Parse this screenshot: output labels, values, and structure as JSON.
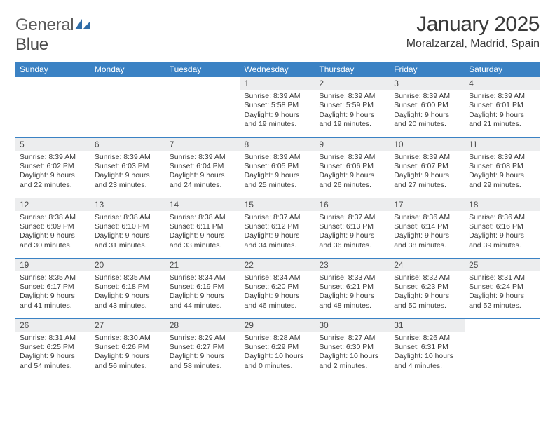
{
  "brand": {
    "part1": "General",
    "part2": "Blue"
  },
  "title": "January 2025",
  "location": "Moralzarzal, Madrid, Spain",
  "colors": {
    "header_bg": "#3b82c4",
    "header_fg": "#ffffff",
    "daynum_bg": "#ecedee",
    "row_border": "#3b82c4",
    "text": "#3a3a3a",
    "logo_blue": "#2f6da8"
  },
  "day_names": [
    "Sunday",
    "Monday",
    "Tuesday",
    "Wednesday",
    "Thursday",
    "Friday",
    "Saturday"
  ],
  "weeks": [
    [
      {
        "n": "",
        "lines": []
      },
      {
        "n": "",
        "lines": []
      },
      {
        "n": "",
        "lines": []
      },
      {
        "n": "1",
        "lines": [
          "Sunrise: 8:39 AM",
          "Sunset: 5:58 PM",
          "Daylight: 9 hours",
          "and 19 minutes."
        ]
      },
      {
        "n": "2",
        "lines": [
          "Sunrise: 8:39 AM",
          "Sunset: 5:59 PM",
          "Daylight: 9 hours",
          "and 19 minutes."
        ]
      },
      {
        "n": "3",
        "lines": [
          "Sunrise: 8:39 AM",
          "Sunset: 6:00 PM",
          "Daylight: 9 hours",
          "and 20 minutes."
        ]
      },
      {
        "n": "4",
        "lines": [
          "Sunrise: 8:39 AM",
          "Sunset: 6:01 PM",
          "Daylight: 9 hours",
          "and 21 minutes."
        ]
      }
    ],
    [
      {
        "n": "5",
        "lines": [
          "Sunrise: 8:39 AM",
          "Sunset: 6:02 PM",
          "Daylight: 9 hours",
          "and 22 minutes."
        ]
      },
      {
        "n": "6",
        "lines": [
          "Sunrise: 8:39 AM",
          "Sunset: 6:03 PM",
          "Daylight: 9 hours",
          "and 23 minutes."
        ]
      },
      {
        "n": "7",
        "lines": [
          "Sunrise: 8:39 AM",
          "Sunset: 6:04 PM",
          "Daylight: 9 hours",
          "and 24 minutes."
        ]
      },
      {
        "n": "8",
        "lines": [
          "Sunrise: 8:39 AM",
          "Sunset: 6:05 PM",
          "Daylight: 9 hours",
          "and 25 minutes."
        ]
      },
      {
        "n": "9",
        "lines": [
          "Sunrise: 8:39 AM",
          "Sunset: 6:06 PM",
          "Daylight: 9 hours",
          "and 26 minutes."
        ]
      },
      {
        "n": "10",
        "lines": [
          "Sunrise: 8:39 AM",
          "Sunset: 6:07 PM",
          "Daylight: 9 hours",
          "and 27 minutes."
        ]
      },
      {
        "n": "11",
        "lines": [
          "Sunrise: 8:39 AM",
          "Sunset: 6:08 PM",
          "Daylight: 9 hours",
          "and 29 minutes."
        ]
      }
    ],
    [
      {
        "n": "12",
        "lines": [
          "Sunrise: 8:38 AM",
          "Sunset: 6:09 PM",
          "Daylight: 9 hours",
          "and 30 minutes."
        ]
      },
      {
        "n": "13",
        "lines": [
          "Sunrise: 8:38 AM",
          "Sunset: 6:10 PM",
          "Daylight: 9 hours",
          "and 31 minutes."
        ]
      },
      {
        "n": "14",
        "lines": [
          "Sunrise: 8:38 AM",
          "Sunset: 6:11 PM",
          "Daylight: 9 hours",
          "and 33 minutes."
        ]
      },
      {
        "n": "15",
        "lines": [
          "Sunrise: 8:37 AM",
          "Sunset: 6:12 PM",
          "Daylight: 9 hours",
          "and 34 minutes."
        ]
      },
      {
        "n": "16",
        "lines": [
          "Sunrise: 8:37 AM",
          "Sunset: 6:13 PM",
          "Daylight: 9 hours",
          "and 36 minutes."
        ]
      },
      {
        "n": "17",
        "lines": [
          "Sunrise: 8:36 AM",
          "Sunset: 6:14 PM",
          "Daylight: 9 hours",
          "and 38 minutes."
        ]
      },
      {
        "n": "18",
        "lines": [
          "Sunrise: 8:36 AM",
          "Sunset: 6:16 PM",
          "Daylight: 9 hours",
          "and 39 minutes."
        ]
      }
    ],
    [
      {
        "n": "19",
        "lines": [
          "Sunrise: 8:35 AM",
          "Sunset: 6:17 PM",
          "Daylight: 9 hours",
          "and 41 minutes."
        ]
      },
      {
        "n": "20",
        "lines": [
          "Sunrise: 8:35 AM",
          "Sunset: 6:18 PM",
          "Daylight: 9 hours",
          "and 43 minutes."
        ]
      },
      {
        "n": "21",
        "lines": [
          "Sunrise: 8:34 AM",
          "Sunset: 6:19 PM",
          "Daylight: 9 hours",
          "and 44 minutes."
        ]
      },
      {
        "n": "22",
        "lines": [
          "Sunrise: 8:34 AM",
          "Sunset: 6:20 PM",
          "Daylight: 9 hours",
          "and 46 minutes."
        ]
      },
      {
        "n": "23",
        "lines": [
          "Sunrise: 8:33 AM",
          "Sunset: 6:21 PM",
          "Daylight: 9 hours",
          "and 48 minutes."
        ]
      },
      {
        "n": "24",
        "lines": [
          "Sunrise: 8:32 AM",
          "Sunset: 6:23 PM",
          "Daylight: 9 hours",
          "and 50 minutes."
        ]
      },
      {
        "n": "25",
        "lines": [
          "Sunrise: 8:31 AM",
          "Sunset: 6:24 PM",
          "Daylight: 9 hours",
          "and 52 minutes."
        ]
      }
    ],
    [
      {
        "n": "26",
        "lines": [
          "Sunrise: 8:31 AM",
          "Sunset: 6:25 PM",
          "Daylight: 9 hours",
          "and 54 minutes."
        ]
      },
      {
        "n": "27",
        "lines": [
          "Sunrise: 8:30 AM",
          "Sunset: 6:26 PM",
          "Daylight: 9 hours",
          "and 56 minutes."
        ]
      },
      {
        "n": "28",
        "lines": [
          "Sunrise: 8:29 AM",
          "Sunset: 6:27 PM",
          "Daylight: 9 hours",
          "and 58 minutes."
        ]
      },
      {
        "n": "29",
        "lines": [
          "Sunrise: 8:28 AM",
          "Sunset: 6:29 PM",
          "Daylight: 10 hours",
          "and 0 minutes."
        ]
      },
      {
        "n": "30",
        "lines": [
          "Sunrise: 8:27 AM",
          "Sunset: 6:30 PM",
          "Daylight: 10 hours",
          "and 2 minutes."
        ]
      },
      {
        "n": "31",
        "lines": [
          "Sunrise: 8:26 AM",
          "Sunset: 6:31 PM",
          "Daylight: 10 hours",
          "and 4 minutes."
        ]
      },
      {
        "n": "",
        "lines": []
      }
    ]
  ]
}
